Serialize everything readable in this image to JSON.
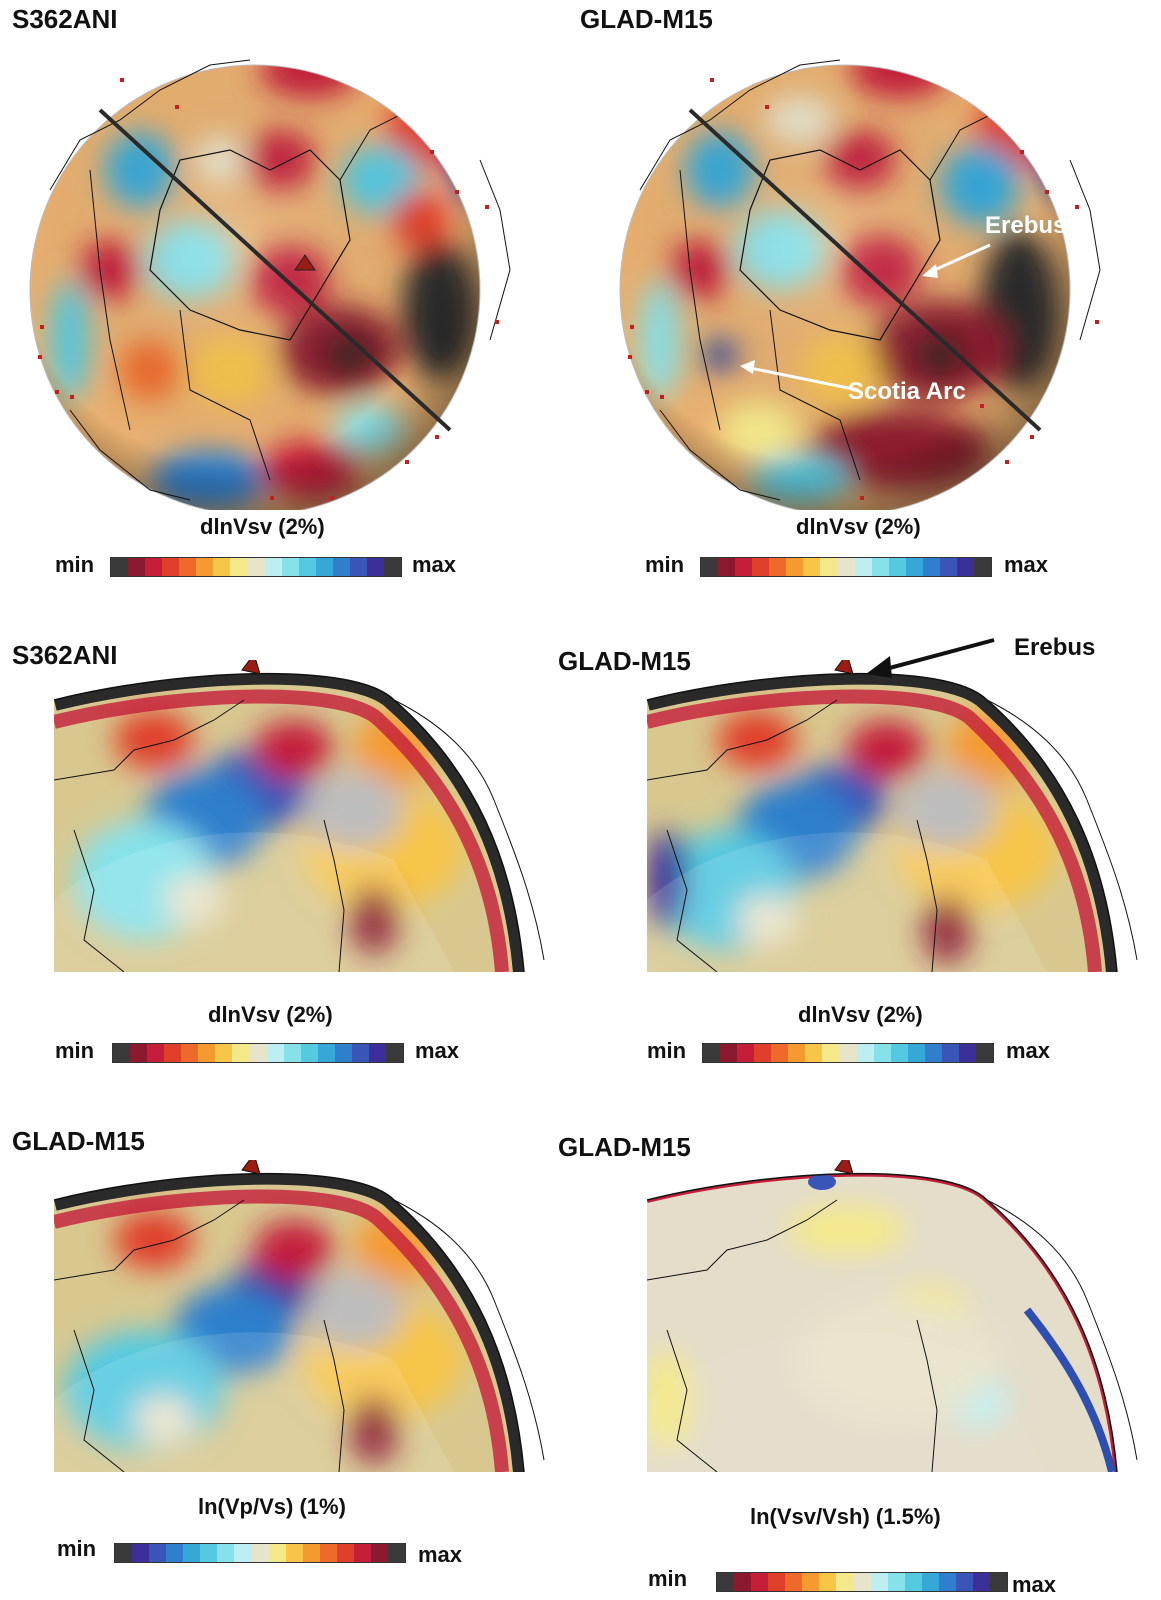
{
  "panels": [
    {
      "title": "S362ANI",
      "colorbar_label": "dlnVsv (2%)",
      "cb_min": "min",
      "cb_max": "max",
      "palette": "rev",
      "view": "globe"
    },
    {
      "title": "GLAD-M15",
      "colorbar_label": "dlnVsv (2%)",
      "cb_min": "min",
      "cb_max": "max",
      "palette": "rev",
      "view": "globe"
    },
    {
      "title": "S362ANI",
      "colorbar_label": "dlnVsv (2%)",
      "cb_min": "min",
      "cb_max": "max",
      "palette": "rev",
      "view": "slice"
    },
    {
      "title": "GLAD-M15",
      "colorbar_label": "dlnVsv (2%)",
      "cb_min": "min",
      "cb_max": "max",
      "palette": "rev",
      "view": "slice"
    },
    {
      "title": "GLAD-M15",
      "colorbar_label": "ln(Vp/Vs) (1%)",
      "cb_min": "min",
      "cb_max": "max",
      "palette": "fwd",
      "view": "slice"
    },
    {
      "title": "GLAD-M15",
      "colorbar_label": "ln(Vsv/Vsh) (1.5%)",
      "cb_min": "min",
      "cb_max": "max",
      "palette": "rev",
      "view": "slice-pale"
    }
  ],
  "annotations": {
    "erebus_top": "Erebus",
    "scotia": "Scotia Arc",
    "erebus_mid": "Erebus"
  },
  "colors": {
    "palette_rev": [
      "#3a3a3a",
      "#8c1a2e",
      "#c41e3a",
      "#e0402a",
      "#ee6a2a",
      "#f59a30",
      "#f7c548",
      "#f4e98a",
      "#e8e4cc",
      "#bdeff2",
      "#86e2ea",
      "#55c9e0",
      "#35a8d8",
      "#2f7fcc",
      "#3a55b8",
      "#3c2f9a",
      "#3a3a3a"
    ],
    "palette_fwd": [
      "#3a3a3a",
      "#3c2f9a",
      "#3a55b8",
      "#2f7fcc",
      "#35a8d8",
      "#55c9e0",
      "#86e2ea",
      "#bdeff2",
      "#e8e4cc",
      "#f4e98a",
      "#f7c548",
      "#f59a30",
      "#ee6a2a",
      "#e0402a",
      "#c41e3a",
      "#8c1a2e",
      "#3a3a3a"
    ],
    "volcano": "#9b1c12"
  }
}
